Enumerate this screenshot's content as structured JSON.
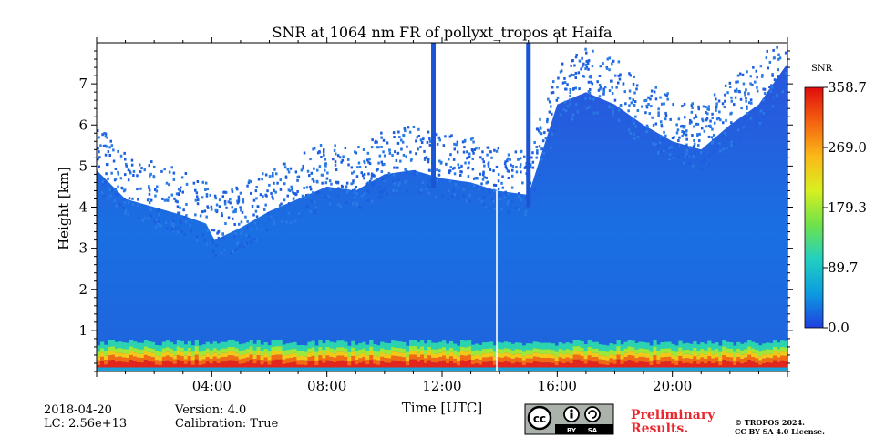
{
  "chart_data": {
    "type": "heatmap",
    "title": "SNR at 1064 nm FR of pollyxt_tropos at Haifa",
    "xlabel": "Time [UTC]",
    "ylabel": "Height [km]",
    "xlim": [
      0,
      24
    ],
    "ylim": [
      0,
      8
    ],
    "x_ticks": [
      {
        "value": 4,
        "label": "04:00"
      },
      {
        "value": 8,
        "label": "08:00"
      },
      {
        "value": 12,
        "label": "12:00"
      },
      {
        "value": 16,
        "label": "16:00"
      },
      {
        "value": 20,
        "label": "20:00"
      }
    ],
    "y_ticks": [
      {
        "value": 1,
        "label": "1"
      },
      {
        "value": 2,
        "label": "2"
      },
      {
        "value": 3,
        "label": "3"
      },
      {
        "value": 4,
        "label": "4"
      },
      {
        "value": 5,
        "label": "5"
      },
      {
        "value": 6,
        "label": "6"
      },
      {
        "value": 7,
        "label": "7"
      }
    ],
    "colorbar": {
      "label": "SNR",
      "range": [
        0.0,
        358.7
      ],
      "ticks": [
        {
          "value": 0.0,
          "label": "0.0"
        },
        {
          "value": 89.7,
          "label": "89.7"
        },
        {
          "value": 179.3,
          "label": "179.3"
        },
        {
          "value": 269.0,
          "label": "269.0"
        },
        {
          "value": 358.7,
          "label": "358.7"
        }
      ],
      "colors": [
        "#1f3fe0",
        "#0c9be0",
        "#22d0c0",
        "#6fe24a",
        "#d8f020",
        "#fbb818",
        "#f46210",
        "#e00d0d"
      ]
    },
    "signal_top_km": {
      "time_h": [
        0,
        1,
        2,
        3,
        3.8,
        4.1,
        5,
        6,
        7,
        8,
        9,
        10,
        11,
        11.5,
        12,
        13,
        13.9,
        15,
        16,
        17,
        18,
        19,
        20,
        21,
        22,
        23,
        24
      ],
      "height_km": [
        4.9,
        4.2,
        4.0,
        3.8,
        3.6,
        3.2,
        3.5,
        3.9,
        4.2,
        4.5,
        4.4,
        4.8,
        4.9,
        4.8,
        4.7,
        4.6,
        4.4,
        4.3,
        6.5,
        6.8,
        6.5,
        6.0,
        5.6,
        5.4,
        6.0,
        6.5,
        7.5
      ]
    },
    "aerosol_layer_km": [
      0.1,
      0.7
    ],
    "gaps_time_h": [
      11.7,
      15.0
    ],
    "missing_profile_time_h": 13.9
  },
  "footer": {
    "date": "2018-04-20",
    "lc": "LC: 2.56e+13",
    "version": "Version: 4.0",
    "calibration": "Calibration: True",
    "license_badge": {
      "cc": "cc",
      "by": "BY",
      "sa": "SA"
    },
    "preliminary_line1": "Preliminary",
    "preliminary_line2": "Results.",
    "copyright_line1": "© TROPOS 2024.",
    "copyright_line2": "CC BY SA 4.0 License."
  }
}
